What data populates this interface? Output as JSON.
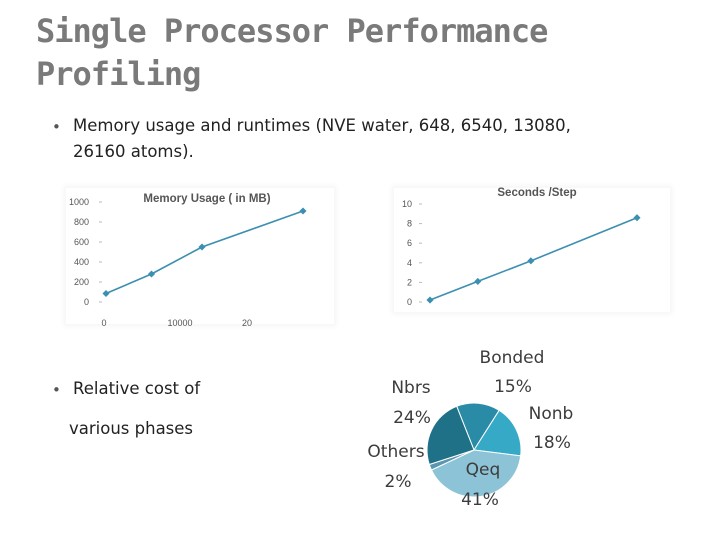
{
  "slide": {
    "title_line1": "Single Processor Performance",
    "title_line2": "Profiling",
    "bullet1_line1": "Memory usage and runtimes (NVE water, 648, 6540, 13080,",
    "bullet1_line2": "26160 atoms).",
    "bullet2_line1": "Relative cost of",
    "bullet2_line2": "various phases",
    "bullet_glyph": "•"
  },
  "chart_data": [
    {
      "type": "line",
      "title": "Memory Usage ( in MB)",
      "x_tick_labels": [
        "0",
        "10000",
        "20"
      ],
      "y_tick_labels": [
        "0",
        "200",
        "400",
        "600",
        "800",
        "1000"
      ],
      "ylim": [
        0,
        1000
      ],
      "series": [
        {
          "x": [
            648,
            6540,
            13080,
            26160
          ],
          "values": [
            85,
            280,
            550,
            910
          ]
        }
      ],
      "color": "#3c8fb0"
    },
    {
      "type": "line",
      "title": "Seconds /Step",
      "y_tick_labels": [
        "0",
        "2",
        "4",
        "6",
        "8",
        "10"
      ],
      "ylim": [
        0,
        10
      ],
      "series": [
        {
          "x": [
            648,
            6540,
            13080,
            26160
          ],
          "values": [
            0.2,
            2.1,
            4.2,
            8.6
          ]
        }
      ],
      "color": "#3c8fb0"
    },
    {
      "type": "pie",
      "slices": [
        {
          "label": "Bonded",
          "pct_label": "15%",
          "value": 15,
          "color": "#2a8ba6"
        },
        {
          "label": "Nonb",
          "pct_label": "18%",
          "value": 18,
          "color": "#35a9c6"
        },
        {
          "label": "Qeq",
          "pct_label": "41%",
          "value": 41,
          "color": "#8dc3d6"
        },
        {
          "label": "Others",
          "pct_label": "2%",
          "value": 2,
          "color": "#5a96b0"
        },
        {
          "label": "Nbrs",
          "pct_label": "24%",
          "value": 24,
          "color": "#1f7188"
        }
      ]
    }
  ]
}
